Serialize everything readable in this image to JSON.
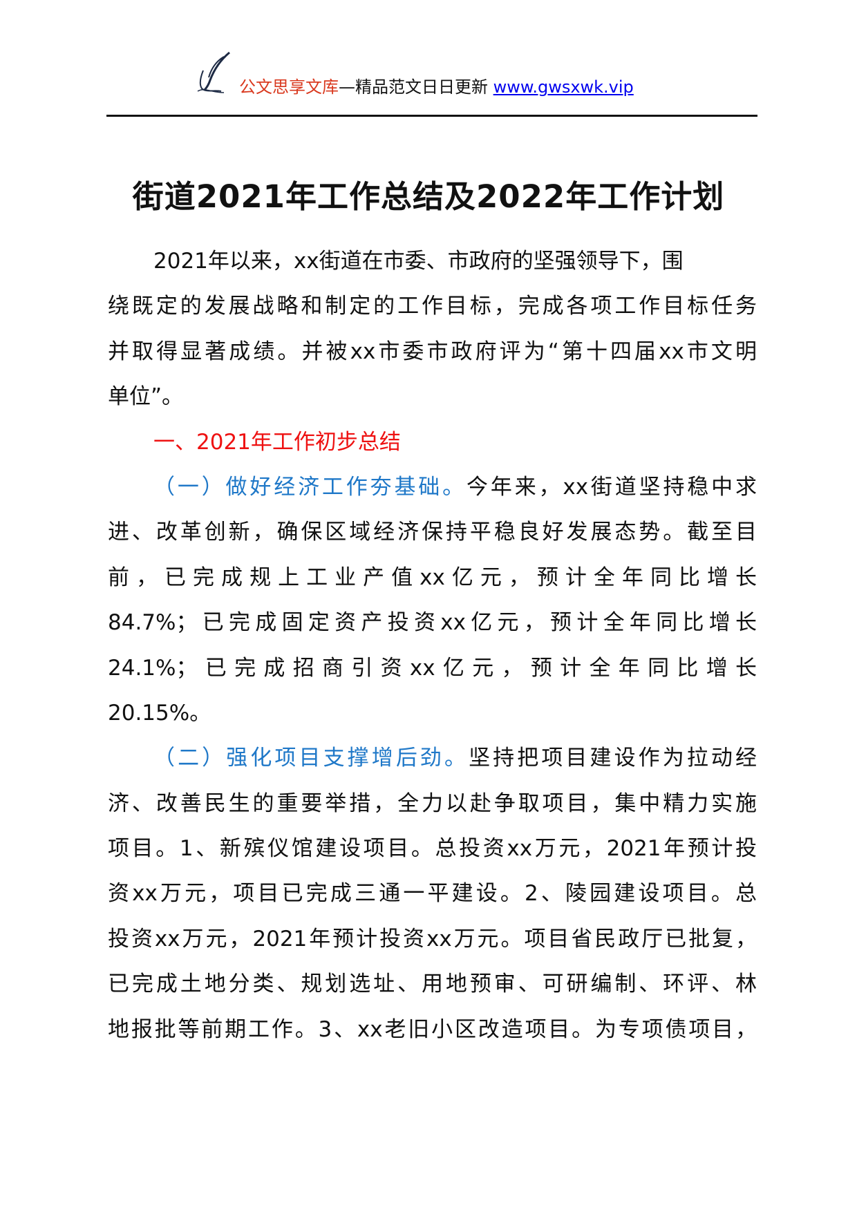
{
  "header": {
    "brand": "公文思享文库",
    "slogan": "—精品范文日日更新 ",
    "url": "www.gwsxwk.vip",
    "logo_icon": "quill-pen-icon"
  },
  "title": "街道2021年工作总结及2022年工作计划",
  "colors": {
    "heading_red": "#ee1111",
    "subheading_blue": "#1f78c8",
    "brand": "#d9381e",
    "link": "#0000ee"
  },
  "lines": [
    {
      "lead": "",
      "text": "2021年以来，xx街道在市委、市政府的坚强领导下，围"
    },
    {
      "lead": "",
      "text": "绕既定的发展战略和制定的工作目标，完成各项工作目标任务"
    },
    {
      "lead": "",
      "text": "并取得显著成绩。并被xx市委市政府评为“第十四届xx市文明"
    },
    {
      "lead": "",
      "text": "单位”。"
    },
    {
      "lead": "一、2021年工作初步总结",
      "text": ""
    },
    {
      "lead": "（一）做好经济工作夯基础。",
      "text": "今年来，xx街道坚持稳中求"
    },
    {
      "lead": "",
      "text": "进、改革创新，确保区域经济保持平稳良好发展态势。截至目"
    },
    {
      "lead": "",
      "text": "前，已完成规上工业产值xx亿元，预计全年同比增长"
    },
    {
      "lead": "",
      "text": "84.7%；已完成固定资产投资xx亿元，预计全年同比增长"
    },
    {
      "lead": "",
      "text": "24.1%；已完成招商引资xx亿元，预计全年同比增长"
    },
    {
      "lead": "",
      "text": "20.15%。"
    },
    {
      "lead": "（二）强化项目支撑增后劲。",
      "text": "坚持把项目建设作为拉动经"
    },
    {
      "lead": "",
      "text": "济、改善民生的重要举措，全力以赴争取项目，集中精力实施"
    },
    {
      "lead": "",
      "text": "项目。1、新殡仪馆建设项目。总投资xx万元，2021年预计投"
    },
    {
      "lead": "",
      "text": "资xx万元，项目已完成三通一平建设。2、陵园建设项目。总"
    },
    {
      "lead": "",
      "text": "投资xx万元，2021年预计投资xx万元。项目省民政厅已批复，"
    },
    {
      "lead": "",
      "text": "已完成土地分类、规划选址、用地预审、可研编制、环评、林"
    },
    {
      "lead": "",
      "text": "地报批等前期工作。3、xx老旧小区改造项目。为专项债项目，"
    }
  ]
}
